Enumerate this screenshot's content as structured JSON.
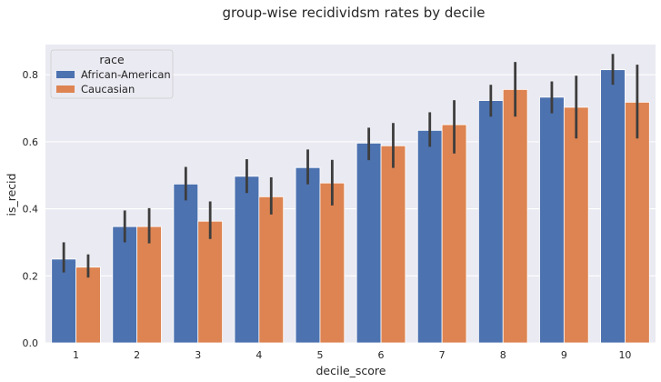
{
  "chart_data": {
    "type": "bar",
    "title": "group-wise recidividsm rates by decile",
    "xlabel": "decile_score",
    "ylabel": "is_recid",
    "categories": [
      "1",
      "2",
      "3",
      "4",
      "5",
      "6",
      "7",
      "8",
      "9",
      "10"
    ],
    "ylim": [
      0,
      0.89
    ],
    "yticks": [
      0.0,
      0.2,
      0.4,
      0.6,
      0.8
    ],
    "ytick_labels": [
      "0.0",
      "0.2",
      "0.4",
      "0.6",
      "0.8"
    ],
    "grid": true,
    "legend": {
      "title": "race",
      "placement": "top-left"
    },
    "series": [
      {
        "name": "African-American",
        "color": "#4c72b0",
        "values": [
          0.25,
          0.347,
          0.474,
          0.497,
          0.523,
          0.596,
          0.634,
          0.723,
          0.733,
          0.815
        ],
        "ci": [
          [
            0.21,
            0.3
          ],
          [
            0.3,
            0.395
          ],
          [
            0.425,
            0.525
          ],
          [
            0.447,
            0.548
          ],
          [
            0.473,
            0.577
          ],
          [
            0.545,
            0.642
          ],
          [
            0.585,
            0.688
          ],
          [
            0.675,
            0.77
          ],
          [
            0.685,
            0.78
          ],
          [
            0.77,
            0.862
          ]
        ]
      },
      {
        "name": "Caucasian",
        "color": "#dd8452",
        "values": [
          0.226,
          0.347,
          0.363,
          0.436,
          0.477,
          0.588,
          0.651,
          0.756,
          0.703,
          0.718
        ],
        "ci": [
          [
            0.195,
            0.264
          ],
          [
            0.297,
            0.402
          ],
          [
            0.31,
            0.422
          ],
          [
            0.383,
            0.494
          ],
          [
            0.41,
            0.546
          ],
          [
            0.522,
            0.656
          ],
          [
            0.565,
            0.724
          ],
          [
            0.675,
            0.838
          ],
          [
            0.61,
            0.797
          ],
          [
            0.61,
            0.83
          ]
        ]
      }
    ]
  }
}
